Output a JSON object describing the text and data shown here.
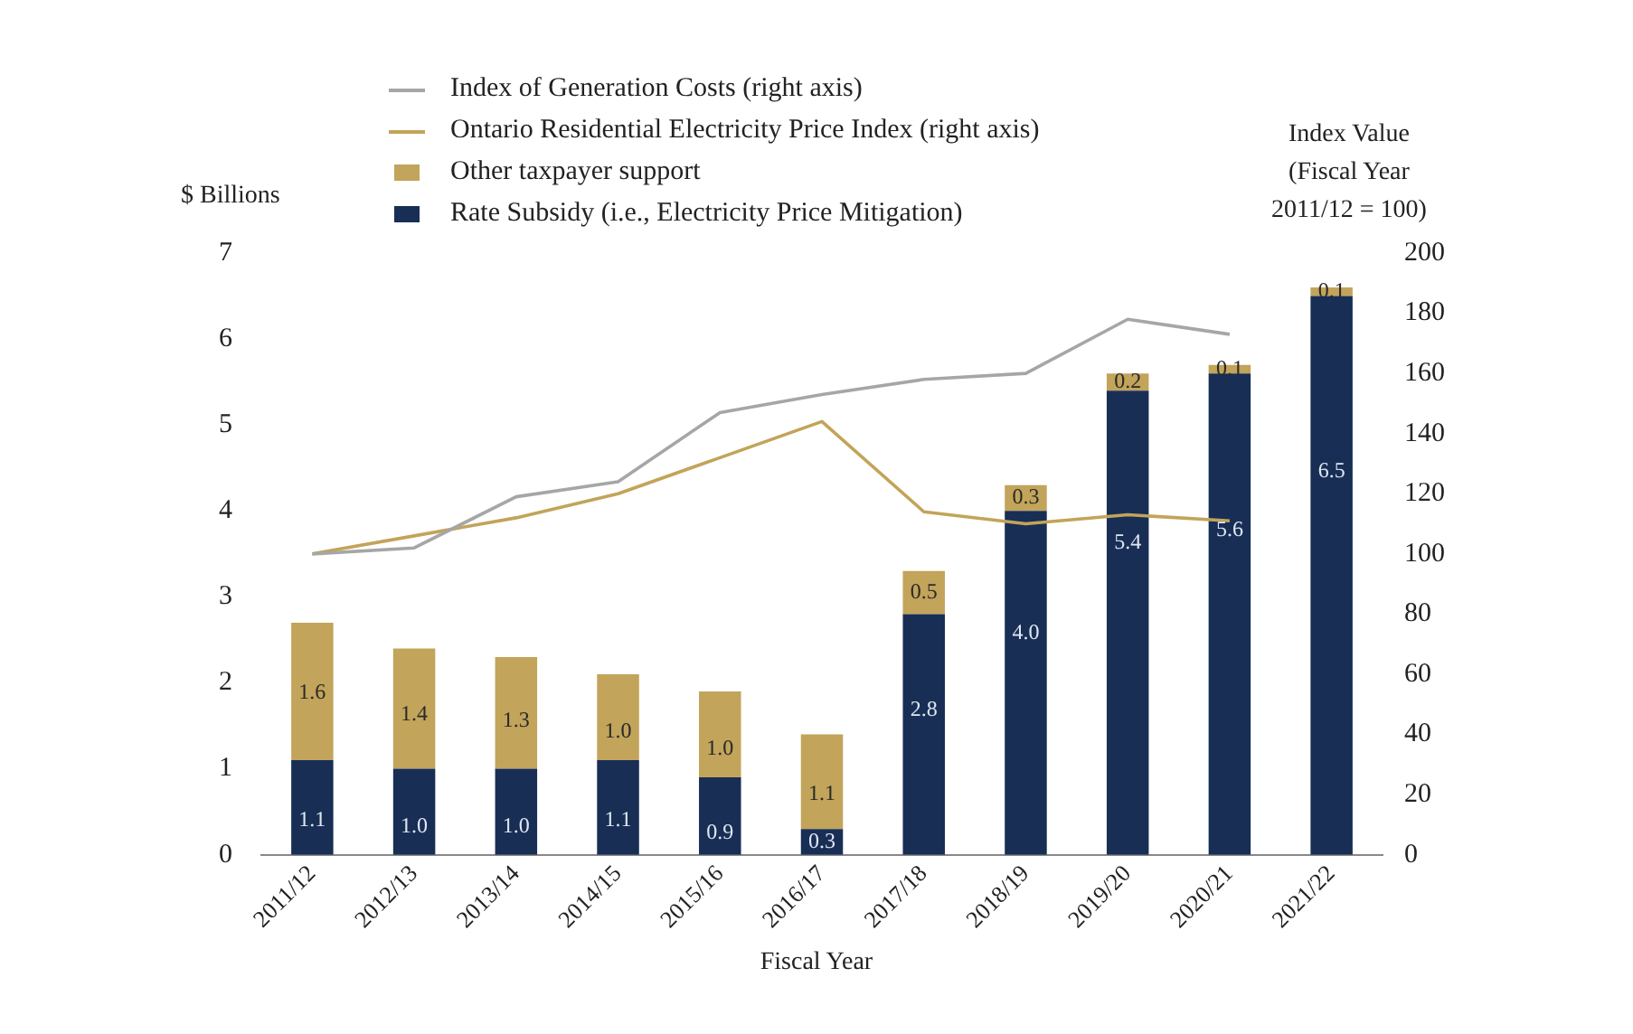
{
  "chart_data": {
    "type": "bar",
    "stacked": true,
    "xlabel": "Fiscal Year",
    "ylabel": "$ Billions",
    "y2label": "Index Value (Fiscal Year 2011/12 = 100)",
    "categories": [
      "2011/12",
      "2012/13",
      "2013/14",
      "2014/15",
      "2015/16",
      "2016/17",
      "2017/18",
      "2018/19",
      "2019/20",
      "2020/21",
      "2021/22"
    ],
    "series": [
      {
        "name": "Index of Generation Costs (right axis)",
        "type": "line",
        "axis": "y2",
        "color": "#a6a6a6",
        "values": [
          100,
          102,
          119,
          124,
          147,
          153,
          158,
          160,
          178,
          173,
          null
        ]
      },
      {
        "name": "Ontario Residential Electricity Price Index (right axis)",
        "type": "line",
        "axis": "y2",
        "color": "#c2a45a",
        "values": [
          100,
          106,
          112,
          120,
          132,
          144,
          114,
          110,
          113,
          111,
          null
        ]
      },
      {
        "name": "Rate Subsidy (i.e., Electricity Price Mitigation)",
        "color": "#182e55",
        "values": [
          1.1,
          1.0,
          1.0,
          1.1,
          0.9,
          0.3,
          2.8,
          4.0,
          5.4,
          5.6,
          6.5
        ],
        "value_labels": [
          "1.1",
          "1.0",
          "1.0",
          "1.1",
          "0.9",
          "0.3",
          "2.8",
          "4.0",
          "5.4",
          "5.6",
          "6.5"
        ]
      },
      {
        "name": "Other taxpayer support",
        "color": "#c2a45a",
        "values": [
          1.6,
          1.4,
          1.3,
          1.0,
          1.0,
          1.1,
          0.5,
          0.3,
          0.2,
          0.1,
          0.1
        ],
        "value_labels": [
          "1.6",
          "1.4",
          "1.3",
          "1.0",
          "1.0",
          "1.1",
          "0.5",
          "0.3",
          "0.2",
          "0.1",
          "0.1"
        ]
      }
    ],
    "ylim": [
      0,
      7
    ],
    "yticks": [
      0,
      1,
      2,
      3,
      4,
      5,
      6,
      7
    ],
    "y2lim": [
      0,
      200
    ],
    "y2ticks": [
      0,
      20,
      40,
      60,
      80,
      100,
      120,
      140,
      160,
      180,
      200
    ],
    "legend": "top",
    "grid": false,
    "marker": "none",
    "line_style": "solid"
  }
}
